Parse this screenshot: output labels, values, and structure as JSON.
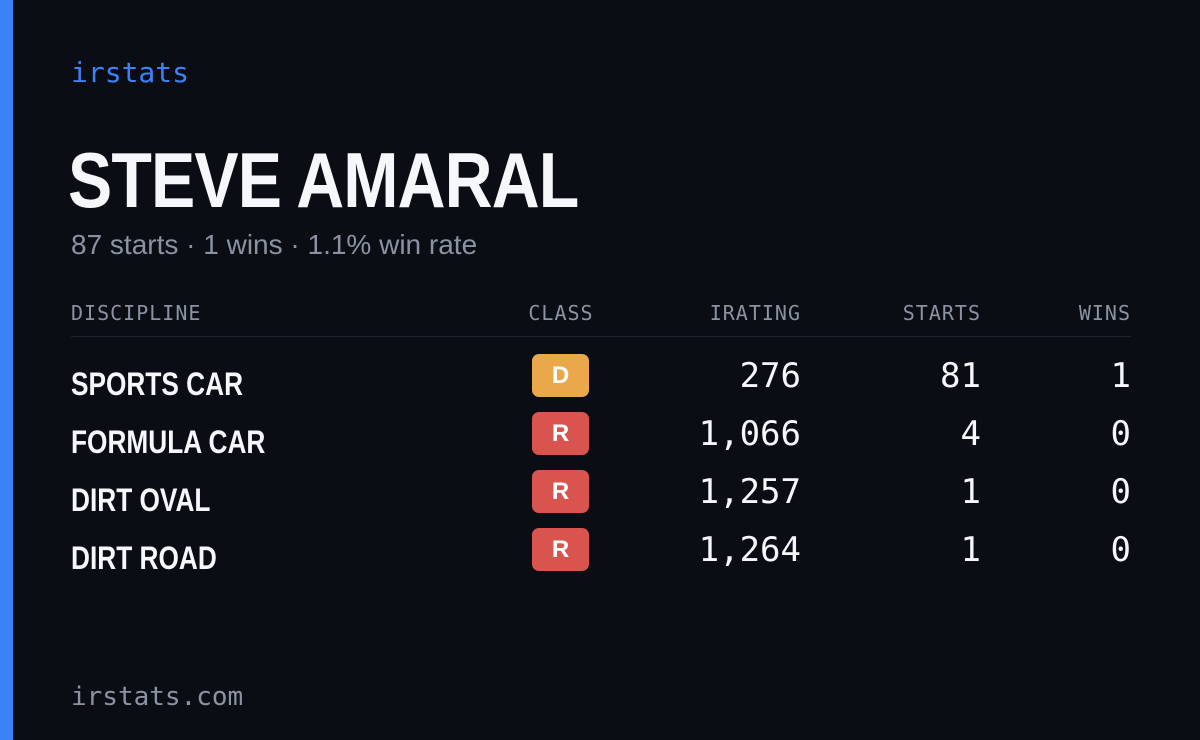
{
  "colors": {
    "background": "#0a0d14",
    "accent": "#3b82f6",
    "class_d": "#eaa84a",
    "class_r": "#d9534f"
  },
  "brand": "irstats",
  "driver": {
    "name": "STEVE AMARAL",
    "summary": "87 starts · 1 wins · 1.1% win rate"
  },
  "table": {
    "headers": {
      "discipline": "DISCIPLINE",
      "class": "CLASS",
      "irating": "IRATING",
      "starts": "STARTS",
      "wins": "WINS"
    },
    "rows": [
      {
        "discipline": "SPORTS CAR",
        "class": "D",
        "irating": "276",
        "starts": "81",
        "wins": "1"
      },
      {
        "discipline": "FORMULA CAR",
        "class": "R",
        "irating": "1,066",
        "starts": "4",
        "wins": "0"
      },
      {
        "discipline": "DIRT OVAL",
        "class": "R",
        "irating": "1,257",
        "starts": "1",
        "wins": "0"
      },
      {
        "discipline": "DIRT ROAD",
        "class": "R",
        "irating": "1,264",
        "starts": "1",
        "wins": "0"
      }
    ]
  },
  "footer": "irstats.com"
}
